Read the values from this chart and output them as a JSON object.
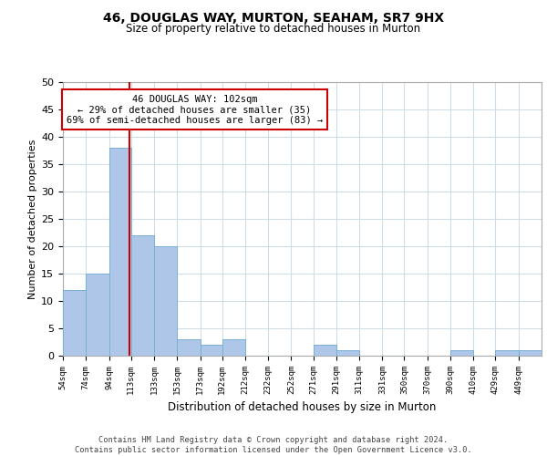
{
  "title": "46, DOUGLAS WAY, MURTON, SEAHAM, SR7 9HX",
  "subtitle": "Size of property relative to detached houses in Murton",
  "xlabel": "Distribution of detached houses by size in Murton",
  "ylabel": "Number of detached properties",
  "bin_labels": [
    "54sqm",
    "74sqm",
    "94sqm",
    "113sqm",
    "133sqm",
    "153sqm",
    "173sqm",
    "192sqm",
    "212sqm",
    "232sqm",
    "252sqm",
    "271sqm",
    "291sqm",
    "311sqm",
    "331sqm",
    "350sqm",
    "370sqm",
    "390sqm",
    "410sqm",
    "429sqm",
    "449sqm"
  ],
  "bar_values": [
    12,
    15,
    38,
    22,
    20,
    3,
    2,
    3,
    0,
    0,
    0,
    2,
    1,
    0,
    0,
    0,
    0,
    1,
    0,
    1,
    1
  ],
  "bar_color": "#aec6e8",
  "bar_edgecolor": "#7aafd4",
  "vline_x": 102,
  "vline_color": "#cc0000",
  "annotation_line1": "46 DOUGLAS WAY: 102sqm",
  "annotation_line2": "← 29% of detached houses are smaller (35)",
  "annotation_line3": "69% of semi-detached houses are larger (83) →",
  "annotation_box_edgecolor": "#cc0000",
  "annotation_box_facecolor": "#ffffff",
  "ylim": [
    0,
    50
  ],
  "yticks": [
    0,
    5,
    10,
    15,
    20,
    25,
    30,
    35,
    40,
    45,
    50
  ],
  "grid_color": "#d0dce8",
  "footer_text": "Contains HM Land Registry data © Crown copyright and database right 2024.\nContains public sector information licensed under the Open Government Licence v3.0.",
  "bin_edges": [
    44,
    64,
    84,
    103,
    123,
    143,
    163,
    182,
    202,
    222,
    242,
    261,
    281,
    301,
    321,
    340,
    360,
    380,
    400,
    419,
    439,
    459
  ]
}
